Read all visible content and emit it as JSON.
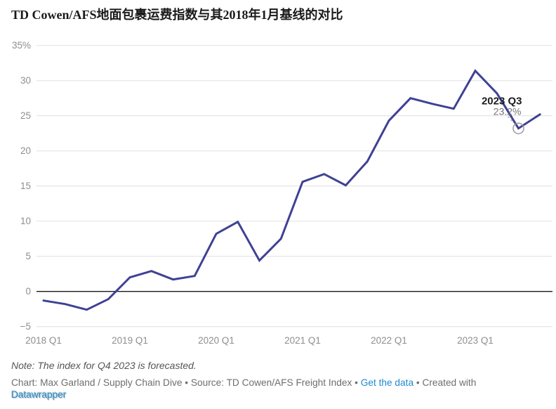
{
  "chart_data": {
    "type": "line",
    "title": "TD Cowen/AFS地面包裹运费指数与其2018年1月基线的对比",
    "xlabel": "",
    "ylabel": "",
    "ylim": [
      -5,
      35
    ],
    "grid": true,
    "legend": false,
    "line_color": "#3f4194",
    "x": [
      "2018 Q1",
      "2018 Q2",
      "2018 Q3",
      "2018 Q4",
      "2019 Q1",
      "2019 Q2",
      "2019 Q3",
      "2019 Q4",
      "2020 Q1",
      "2020 Q2",
      "2020 Q3",
      "2020 Q4",
      "2021 Q1",
      "2021 Q2",
      "2021 Q3",
      "2021 Q4",
      "2022 Q1",
      "2022 Q2",
      "2022 Q3",
      "2022 Q4",
      "2023 Q1",
      "2023 Q2",
      "2023 Q3",
      "2023 Q4"
    ],
    "values": [
      -1.3,
      -1.8,
      -2.6,
      -1.1,
      2.0,
      2.9,
      1.7,
      2.2,
      8.2,
      9.9,
      4.4,
      7.5,
      15.6,
      16.7,
      15.1,
      18.5,
      24.3,
      27.5,
      26.7,
      26.0,
      31.4,
      28.2,
      23.2,
      25.2
    ],
    "x_tick_labels": [
      "2018 Q1",
      "2019 Q1",
      "2020 Q1",
      "2021 Q1",
      "2022 Q1",
      "2023 Q1"
    ],
    "y_ticks": [
      35,
      30,
      25,
      20,
      15,
      10,
      5,
      0,
      -5
    ],
    "y_tick_labels": [
      "35%",
      "30",
      "25",
      "20",
      "15",
      "10",
      "5",
      "0",
      "−5"
    ],
    "annotation": {
      "x": "2023 Q3",
      "value": 23.2,
      "label": "2023 Q3",
      "value_label": "23.2%"
    }
  },
  "footer": {
    "note": "Note: The index for Q4 2023 is forecasted.",
    "credit_prefix": "Chart: Max Garland / Supply Chain Dive • Source: TD Cowen/AFS Freight Index • ",
    "link_get_data": "Get the data",
    "credit_middle": " • Created with ",
    "link_datawrapper": "Datawrapper"
  },
  "colors": {
    "line": "#3f4194",
    "link_blue": "#1d8ccf",
    "axis_gray": "#8e8e8e",
    "gridline": "#e0e0e0",
    "zero_line": "#1a1a1a"
  }
}
